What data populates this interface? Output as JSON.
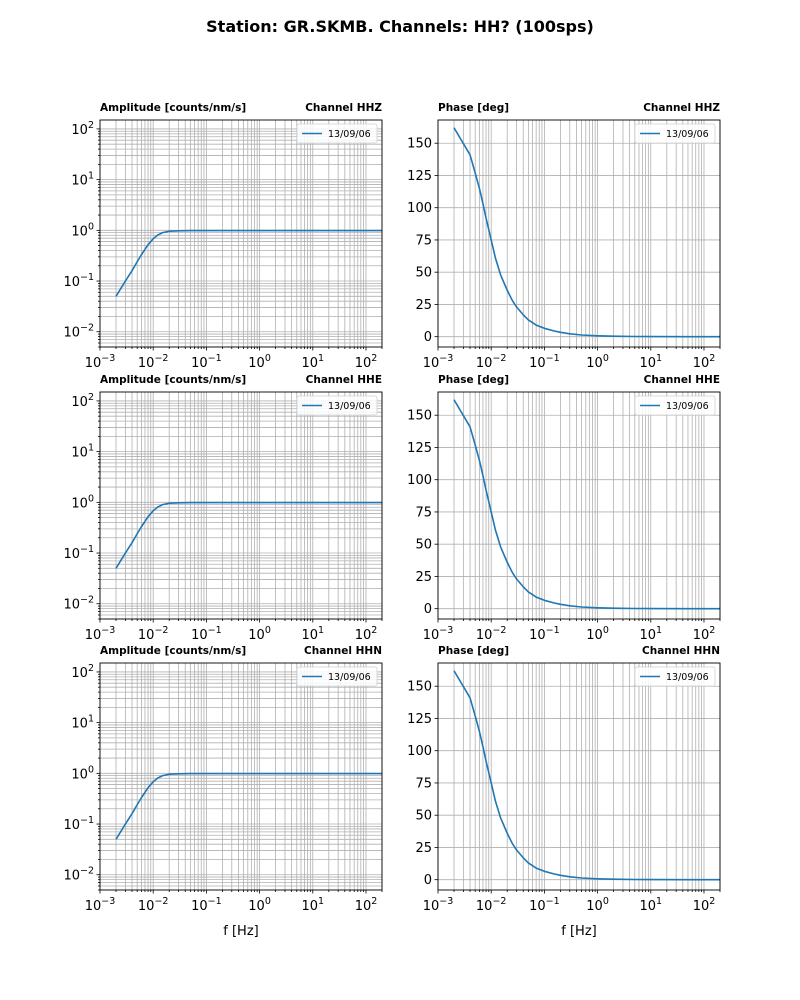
{
  "figure": {
    "title": "Station: GR.SKMB. Channels: HH? (100sps)"
  },
  "colors": {
    "line": "#1f77b4",
    "grid": "#b0b0b0",
    "axis": "#000000"
  },
  "chart_data": [
    {
      "type": "line",
      "kind": "amplitude",
      "channel": "Channel HHZ",
      "title_left": "Amplitude [counts/nm/s]",
      "title_right": "Channel HHZ",
      "legend": "13/09/06",
      "xscale": "log",
      "yscale": "log",
      "xlim": [
        0.001,
        200
      ],
      "ylim": [
        0.005,
        150
      ],
      "xlabel": "",
      "x": [
        0.002,
        0.003,
        0.004,
        0.005,
        0.006,
        0.008,
        0.01,
        0.012,
        0.015,
        0.02,
        0.03,
        0.05,
        0.1,
        1,
        10,
        100,
        200
      ],
      "y": [
        0.05,
        0.1,
        0.16,
        0.24,
        0.33,
        0.52,
        0.68,
        0.8,
        0.9,
        0.96,
        0.98,
        0.99,
        0.99,
        0.99,
        0.99,
        0.99,
        0.99
      ]
    },
    {
      "type": "line",
      "kind": "phase",
      "channel": "Channel HHZ",
      "title_left": "Phase [deg]",
      "title_right": "Channel HHZ",
      "legend": "13/09/06",
      "xscale": "log",
      "yscale": "linear",
      "xlim": [
        0.001,
        200
      ],
      "ylim": [
        -8,
        168
      ],
      "xlabel": "",
      "x": [
        0.002,
        0.004,
        0.005,
        0.006,
        0.007,
        0.008,
        0.01,
        0.012,
        0.015,
        0.02,
        0.025,
        0.03,
        0.04,
        0.05,
        0.07,
        0.1,
        0.15,
        0.2,
        0.3,
        0.5,
        1,
        2,
        5,
        10,
        50,
        200
      ],
      "y": [
        162,
        141,
        127,
        115,
        103,
        92,
        75,
        61,
        48,
        36,
        28,
        23,
        17,
        13,
        9,
        6.5,
        4.5,
        3.4,
        2.2,
        1.3,
        0.7,
        0.35,
        0.14,
        0.07,
        0.02,
        0
      ]
    },
    {
      "type": "line",
      "kind": "amplitude",
      "channel": "Channel HHE",
      "title_left": "Amplitude [counts/nm/s]",
      "title_right": "Channel HHE",
      "legend": "13/09/06",
      "xscale": "log",
      "yscale": "log",
      "xlim": [
        0.001,
        200
      ],
      "ylim": [
        0.005,
        150
      ],
      "xlabel": "",
      "x": [
        0.002,
        0.003,
        0.004,
        0.005,
        0.006,
        0.008,
        0.01,
        0.012,
        0.015,
        0.02,
        0.03,
        0.05,
        0.1,
        1,
        10,
        100,
        200
      ],
      "y": [
        0.05,
        0.1,
        0.16,
        0.24,
        0.33,
        0.52,
        0.68,
        0.8,
        0.9,
        0.96,
        0.98,
        0.99,
        0.99,
        0.99,
        0.99,
        0.99,
        0.99
      ]
    },
    {
      "type": "line",
      "kind": "phase",
      "channel": "Channel HHE",
      "title_left": "Phase [deg]",
      "title_right": "Channel HHE",
      "legend": "13/09/06",
      "xscale": "log",
      "yscale": "linear",
      "xlim": [
        0.001,
        200
      ],
      "ylim": [
        -8,
        168
      ],
      "xlabel": "",
      "x": [
        0.002,
        0.004,
        0.005,
        0.006,
        0.007,
        0.008,
        0.01,
        0.012,
        0.015,
        0.02,
        0.025,
        0.03,
        0.04,
        0.05,
        0.07,
        0.1,
        0.15,
        0.2,
        0.3,
        0.5,
        1,
        2,
        5,
        10,
        50,
        200
      ],
      "y": [
        162,
        141,
        127,
        115,
        103,
        92,
        75,
        61,
        48,
        36,
        28,
        23,
        17,
        13,
        9,
        6.5,
        4.5,
        3.4,
        2.2,
        1.3,
        0.7,
        0.35,
        0.14,
        0.07,
        0.02,
        0
      ]
    },
    {
      "type": "line",
      "kind": "amplitude",
      "channel": "Channel HHN",
      "title_left": "Amplitude [counts/nm/s]",
      "title_right": "Channel HHN",
      "legend": "13/09/06",
      "xscale": "log",
      "yscale": "log",
      "xlim": [
        0.001,
        200
      ],
      "ylim": [
        0.005,
        150
      ],
      "xlabel": "f [Hz]",
      "x": [
        0.002,
        0.003,
        0.004,
        0.005,
        0.006,
        0.008,
        0.01,
        0.012,
        0.015,
        0.02,
        0.03,
        0.05,
        0.1,
        1,
        10,
        100,
        200
      ],
      "y": [
        0.05,
        0.1,
        0.16,
        0.24,
        0.33,
        0.52,
        0.68,
        0.8,
        0.9,
        0.96,
        0.98,
        0.99,
        0.99,
        0.99,
        0.99,
        0.99,
        0.99
      ]
    },
    {
      "type": "line",
      "kind": "phase",
      "channel": "Channel HHN",
      "title_left": "Phase [deg]",
      "title_right": "Channel HHN",
      "legend": "13/09/06",
      "xscale": "log",
      "yscale": "linear",
      "xlim": [
        0.001,
        200
      ],
      "ylim": [
        -8,
        168
      ],
      "xlabel": "f [Hz]",
      "x": [
        0.002,
        0.004,
        0.005,
        0.006,
        0.007,
        0.008,
        0.01,
        0.012,
        0.015,
        0.02,
        0.025,
        0.03,
        0.04,
        0.05,
        0.07,
        0.1,
        0.15,
        0.2,
        0.3,
        0.5,
        1,
        2,
        5,
        10,
        50,
        200
      ],
      "y": [
        162,
        141,
        127,
        115,
        103,
        92,
        75,
        61,
        48,
        36,
        28,
        23,
        17,
        13,
        9,
        6.5,
        4.5,
        3.4,
        2.2,
        1.3,
        0.7,
        0.35,
        0.14,
        0.07,
        0.02,
        0
      ]
    }
  ]
}
